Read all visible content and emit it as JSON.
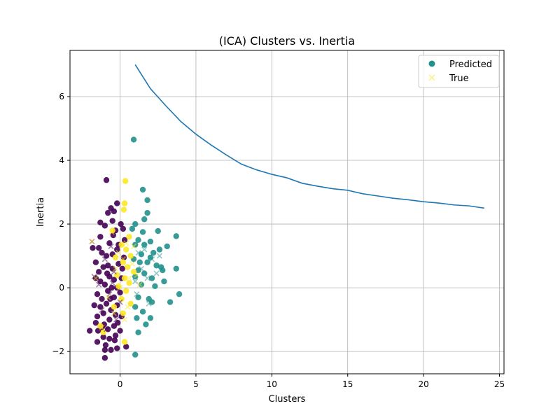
{
  "chart_data": {
    "type": "scatter",
    "title": "(ICA) Clusters vs. Inertia",
    "xlabel": "Clusters",
    "ylabel": "Inertia",
    "xlim": [
      -3.3,
      25.3
    ],
    "ylim": [
      -2.7,
      7.45
    ],
    "xticks": [
      0,
      5,
      10,
      15,
      20,
      25
    ],
    "yticks": [
      -2,
      0,
      2,
      4,
      6
    ],
    "grid": true,
    "legend_position": "top-right",
    "legend": [
      {
        "label": "Predicted",
        "marker": "circle",
        "color": "#21918c"
      },
      {
        "label": "True",
        "marker": "x",
        "color": "#fde725"
      }
    ],
    "colors": {
      "cluster_0": "#440154",
      "cluster_1": "#21918c",
      "cluster_2": "#fde725",
      "line": "#1f77b4",
      "true_x_alpha": 0.3
    },
    "inertia_line": {
      "x": [
        1,
        2,
        3,
        4,
        5,
        6,
        7,
        8,
        9,
        10,
        11,
        12,
        13,
        14,
        15,
        16,
        17,
        18,
        19,
        20,
        21,
        22,
        23,
        24
      ],
      "y": [
        7.0,
        6.25,
        5.72,
        5.22,
        4.82,
        4.48,
        4.17,
        3.88,
        3.7,
        3.56,
        3.45,
        3.28,
        3.19,
        3.11,
        3.06,
        2.95,
        2.88,
        2.81,
        2.76,
        2.7,
        2.66,
        2.6,
        2.57,
        2.5
      ]
    },
    "scatter_predicted": [
      {
        "cluster": 0,
        "points": [
          [
            -0.9,
            3.38
          ],
          [
            -0.2,
            2.65
          ],
          [
            -0.6,
            2.5
          ],
          [
            -0.4,
            2.4
          ],
          [
            -0.8,
            2.35
          ],
          [
            -1.3,
            2.05
          ],
          [
            -0.5,
            2.1
          ],
          [
            0.05,
            2.0
          ],
          [
            -1.0,
            1.95
          ],
          [
            -0.3,
            1.8
          ],
          [
            0.2,
            1.85
          ],
          [
            -1.4,
            1.25
          ],
          [
            -0.7,
            1.4
          ],
          [
            -0.1,
            1.35
          ],
          [
            0.3,
            1.5
          ],
          [
            -1.2,
            1.1
          ],
          [
            -0.9,
            1.0
          ],
          [
            -0.5,
            1.05
          ],
          [
            -0.2,
            1.2
          ],
          [
            -1.1,
            0.65
          ],
          [
            -1.4,
            0.5
          ],
          [
            -0.8,
            0.7
          ],
          [
            -0.5,
            0.6
          ],
          [
            -0.1,
            0.75
          ],
          [
            -1.6,
            0.3
          ],
          [
            -1.3,
            0.2
          ],
          [
            -0.7,
            0.35
          ],
          [
            -0.4,
            0.25
          ],
          [
            -1.0,
            0.1
          ],
          [
            -0.2,
            0.0
          ],
          [
            0.1,
            0.3
          ],
          [
            -1.5,
            -0.2
          ],
          [
            -1.2,
            -0.35
          ],
          [
            -0.8,
            -0.1
          ],
          [
            -0.4,
            -0.3
          ],
          [
            0.0,
            -0.15
          ],
          [
            -1.7,
            -0.55
          ],
          [
            -1.3,
            -0.6
          ],
          [
            -0.9,
            -0.5
          ],
          [
            -0.6,
            -0.7
          ],
          [
            -0.2,
            -0.55
          ],
          [
            -1.5,
            -0.9
          ],
          [
            -1.1,
            -0.8
          ],
          [
            -0.7,
            -1.0
          ],
          [
            -0.3,
            -0.85
          ],
          [
            0.1,
            -0.9
          ],
          [
            -2.0,
            -1.35
          ],
          [
            -1.6,
            -1.1
          ],
          [
            -1.2,
            -1.25
          ],
          [
            -0.8,
            -1.3
          ],
          [
            -0.4,
            -1.2
          ],
          [
            0.0,
            -1.35
          ],
          [
            -1.5,
            -1.7
          ],
          [
            -1.1,
            -1.55
          ],
          [
            -0.7,
            -1.6
          ],
          [
            -0.3,
            -1.5
          ],
          [
            -1.0,
            -1.95
          ],
          [
            -0.6,
            -1.95
          ],
          [
            -0.2,
            -1.9
          ],
          [
            0.4,
            -1.85
          ],
          [
            -1.0,
            -2.2
          ],
          [
            -1.8,
            1.25
          ],
          [
            -1.6,
            0.8
          ],
          [
            -1.3,
            1.6
          ],
          [
            -0.95,
            -1.8
          ],
          [
            -0.55,
            0.0
          ],
          [
            -0.85,
            0.45
          ],
          [
            -0.15,
            -1.1
          ],
          [
            0.25,
            0.95
          ],
          [
            -1.05,
            -1.15
          ],
          [
            -0.45,
            1.65
          ],
          [
            -1.45,
            -1.35
          ],
          [
            -0.65,
            -0.35
          ],
          [
            0.15,
            0.6
          ],
          [
            -0.35,
            -1.65
          ]
        ]
      },
      {
        "cluster": 1,
        "points": [
          [
            0.9,
            4.65
          ],
          [
            1.5,
            3.08
          ],
          [
            1.8,
            2.75
          ],
          [
            1.8,
            2.35
          ],
          [
            1.6,
            2.15
          ],
          [
            1.0,
            2.0
          ],
          [
            0.8,
            1.85
          ],
          [
            1.5,
            1.75
          ],
          [
            2.5,
            1.78
          ],
          [
            3.7,
            1.62
          ],
          [
            1.2,
            1.5
          ],
          [
            2.0,
            1.45
          ],
          [
            3.1,
            1.3
          ],
          [
            1.0,
            1.35
          ],
          [
            1.6,
            1.35
          ],
          [
            2.6,
            1.2
          ],
          [
            1.4,
            1.05
          ],
          [
            2.0,
            0.95
          ],
          [
            0.9,
            0.9
          ],
          [
            1.8,
            0.8
          ],
          [
            2.4,
            0.7
          ],
          [
            3.7,
            0.6
          ],
          [
            1.2,
            0.55
          ],
          [
            1.6,
            0.45
          ],
          [
            2.8,
            0.55
          ],
          [
            1.0,
            0.35
          ],
          [
            2.1,
            0.3
          ],
          [
            2.9,
            0.2
          ],
          [
            1.4,
            0.1
          ],
          [
            2.3,
            0.05
          ],
          [
            3.9,
            -0.2
          ],
          [
            1.2,
            -0.3
          ],
          [
            1.9,
            -0.35
          ],
          [
            3.3,
            -0.45
          ],
          [
            1.0,
            -0.6
          ],
          [
            2.1,
            -0.45
          ],
          [
            1.5,
            -0.75
          ],
          [
            2.0,
            -0.95
          ],
          [
            1.1,
            -0.95
          ],
          [
            1.7,
            -1.15
          ],
          [
            1.2,
            -1.4
          ],
          [
            1.0,
            -2.1
          ],
          [
            2.7,
            0.65
          ],
          [
            1.3,
            0.8
          ],
          [
            2.2,
            1.1
          ]
        ]
      },
      {
        "cluster": 2,
        "points": [
          [
            0.35,
            3.35
          ],
          [
            0.3,
            2.65
          ],
          [
            0.25,
            2.45
          ],
          [
            -0.5,
            1.8
          ],
          [
            0.6,
            1.6
          ],
          [
            0.1,
            1.35
          ],
          [
            0.4,
            1.2
          ],
          [
            0.7,
            1.0
          ],
          [
            -0.3,
            0.95
          ],
          [
            0.2,
            0.8
          ],
          [
            0.5,
            0.65
          ],
          [
            0.9,
            0.5
          ],
          [
            -0.2,
            0.4
          ],
          [
            0.3,
            0.3
          ],
          [
            0.6,
            0.15
          ],
          [
            -0.1,
            0.05
          ],
          [
            0.4,
            -0.1
          ],
          [
            0.1,
            -0.35
          ],
          [
            0.7,
            -0.5
          ],
          [
            -0.4,
            -0.6
          ],
          [
            0.2,
            -0.8
          ],
          [
            -1.3,
            -1.2
          ],
          [
            0.3,
            -1.7
          ],
          [
            -1.1,
            -1.4
          ]
        ]
      }
    ],
    "scatter_true": [
      {
        "cluster": 0,
        "points": [
          [
            -1.85,
            1.45
          ],
          [
            -1.7,
            0.35
          ],
          [
            -1.0,
            0.9
          ],
          [
            -0.7,
            -0.2
          ],
          [
            -0.4,
            0.5
          ],
          [
            -1.2,
            -0.7
          ],
          [
            -0.6,
            1.3
          ],
          [
            0.0,
            -0.45
          ],
          [
            -0.9,
            -1.3
          ],
          [
            -1.4,
            0.1
          ],
          [
            -0.25,
            -1.0
          ],
          [
            -0.5,
            0.15
          ]
        ]
      },
      {
        "cluster": 1,
        "points": [
          [
            1.4,
            0.6
          ],
          [
            1.8,
            0.3
          ],
          [
            2.1,
            0.9
          ],
          [
            1.1,
            -0.2
          ],
          [
            1.6,
            1.2
          ],
          [
            2.4,
            0.45
          ],
          [
            1.2,
            1.1
          ],
          [
            1.9,
            -0.5
          ],
          [
            2.6,
            1.0
          ],
          [
            1.0,
            0.2
          ]
        ]
      },
      {
        "cluster": 2,
        "points": [
          [
            -1.85,
            1.45
          ],
          [
            -0.55,
            1.75
          ],
          [
            0.4,
            1.4
          ],
          [
            0.2,
            0.9
          ],
          [
            -0.3,
            0.6
          ],
          [
            0.6,
            0.3
          ],
          [
            0.0,
            0.0
          ],
          [
            -0.8,
            -0.3
          ],
          [
            0.5,
            -0.6
          ],
          [
            -1.2,
            -1.25
          ],
          [
            0.8,
            0.75
          ],
          [
            -0.1,
            1.1
          ],
          [
            1.1,
            0.4
          ],
          [
            0.3,
            -1.0
          ],
          [
            -1.6,
            0.3
          ],
          [
            0.9,
            1.3
          ],
          [
            -0.4,
            -0.8
          ],
          [
            1.3,
            0.1
          ]
        ]
      }
    ]
  }
}
